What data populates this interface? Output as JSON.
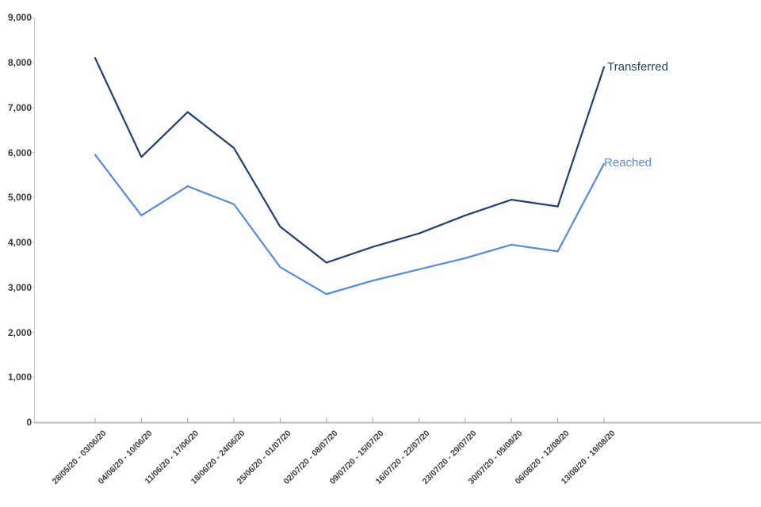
{
  "chart_data": {
    "type": "line",
    "title": "",
    "xlabel": "",
    "ylabel": "",
    "categories": [
      "28/05/20 - 03/06/20",
      "04/06/20 - 10/06/20",
      "11/06/20 - 17/06/20",
      "18/06/20 - 24/06/20",
      "25/06/20 - 01/07/20",
      "02/07/20 - 08/07/20",
      "09/07/20 - 15/07/20",
      "16/07/20 - 22/07/20",
      "23/07/20 - 29/07/20",
      "30/07/20 - 05/08/20",
      "06/08/20 - 12/08/20",
      "13/08/20 - 19/08/20"
    ],
    "series": [
      {
        "name": "Transferred",
        "color": "#24426E",
        "values": [
          8100,
          5900,
          6900,
          6100,
          4350,
          3550,
          3900,
          4200,
          4600,
          4950,
          4800,
          7900
        ]
      },
      {
        "name": "Reached",
        "color": "#5B8BD4",
        "values": [
          5950,
          4600,
          5250,
          4850,
          3450,
          2850,
          3150,
          3400,
          3650,
          3950,
          3800,
          5750
        ]
      }
    ],
    "ylim": [
      0,
      9000
    ],
    "ytick_interval": 1000,
    "ytick_labels": [
      "0",
      "1,000",
      "2,000",
      "3,000",
      "4,000",
      "5,000",
      "6,000",
      "7,000",
      "8,000",
      "9,000"
    ],
    "grid": false,
    "legend_position": "line-end-labels",
    "x_axis_color": "#B7BCC8",
    "y_axis_color": "#C7C7C7",
    "tick_color": "#A0A0A0",
    "label_color": "#3A3A3A"
  }
}
